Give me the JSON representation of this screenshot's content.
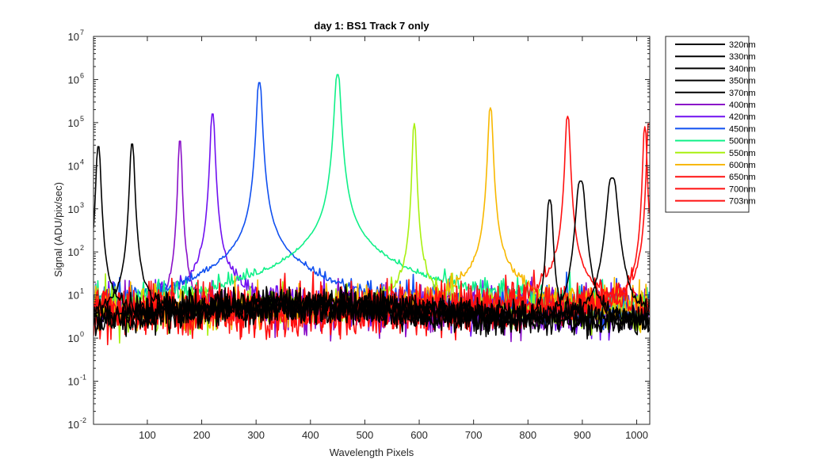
{
  "chart_data": {
    "type": "line",
    "title": "day 1: BS1   Track 7 only",
    "xlabel": "Wavelength Pixels",
    "ylabel": "Signal (ADU/pix/sec)",
    "xlim": [
      1,
      1024
    ],
    "ylim": [
      0.01,
      10000000
    ],
    "yscale": "log",
    "x_ticks": [
      100,
      200,
      300,
      400,
      500,
      600,
      700,
      800,
      900,
      1000
    ],
    "y_ticks": [
      {
        "value": 0.01,
        "base": "10",
        "exp": "-2"
      },
      {
        "value": 0.1,
        "base": "10",
        "exp": "-1"
      },
      {
        "value": 1,
        "base": "10",
        "exp": "0"
      },
      {
        "value": 10,
        "base": "10",
        "exp": "1"
      },
      {
        "value": 100,
        "base": "10",
        "exp": "2"
      },
      {
        "value": 1000,
        "base": "10",
        "exp": "3"
      },
      {
        "value": 10000,
        "base": "10",
        "exp": "4"
      },
      {
        "value": 100000,
        "base": "10",
        "exp": "5"
      },
      {
        "value": 1000000,
        "base": "10",
        "exp": "6"
      },
      {
        "value": 10000000,
        "base": "10",
        "exp": "7"
      }
    ],
    "grid": false,
    "legend_position": "outside-right",
    "series": [
      {
        "name": "320nm",
        "color": "#000000",
        "peaks": [
          {
            "x": 10,
            "y": 28000,
            "w": 3
          }
        ]
      },
      {
        "name": "330nm",
        "color": "#000000",
        "peaks": [
          {
            "x": 72,
            "y": 32000,
            "w": 3
          }
        ]
      },
      {
        "name": "340nm",
        "color": "#000000",
        "peaks": [
          {
            "x": 840,
            "y": 1600,
            "w": 4
          }
        ]
      },
      {
        "name": "350nm",
        "color": "#000000",
        "peaks": [
          {
            "x": 897,
            "y": 4400,
            "w": 6
          }
        ]
      },
      {
        "name": "370nm",
        "color": "#000000",
        "peaks": [
          {
            "x": 955,
            "y": 5200,
            "w": 7
          }
        ]
      },
      {
        "name": "400nm",
        "color": "#8a10c8",
        "peaks": [
          {
            "x": 160,
            "y": 38000,
            "w": 2.5
          }
        ]
      },
      {
        "name": "420nm",
        "color": "#7010f0",
        "peaks": [
          {
            "x": 220,
            "y": 160000,
            "w": 3
          }
        ]
      },
      {
        "name": "450nm",
        "color": "#1050f0",
        "peaks": [
          {
            "x": 306,
            "y": 850000,
            "w": 3.5
          }
        ]
      },
      {
        "name": "500nm",
        "color": "#10f088",
        "peaks": [
          {
            "x": 450,
            "y": 1300000,
            "w": 4
          }
        ]
      },
      {
        "name": "550nm",
        "color": "#a8f010",
        "peaks": [
          {
            "x": 591,
            "y": 95000,
            "w": 2.5
          }
        ]
      },
      {
        "name": "600nm",
        "color": "#f8b800",
        "peaks": [
          {
            "x": 731,
            "y": 220000,
            "w": 3
          }
        ]
      },
      {
        "name": "650nm",
        "color": "#ff1010",
        "peaks": [
          {
            "x": 873,
            "y": 140000,
            "w": 3
          }
        ]
      },
      {
        "name": "700nm",
        "color": "#ff1010",
        "peaks": [
          {
            "x": 1015,
            "y": 80000,
            "w": 2.5
          }
        ]
      },
      {
        "name": "703nm",
        "color": "#ff1010",
        "peaks": [
          {
            "x": 1022,
            "y": 95000,
            "w": 2.5
          }
        ]
      }
    ]
  }
}
